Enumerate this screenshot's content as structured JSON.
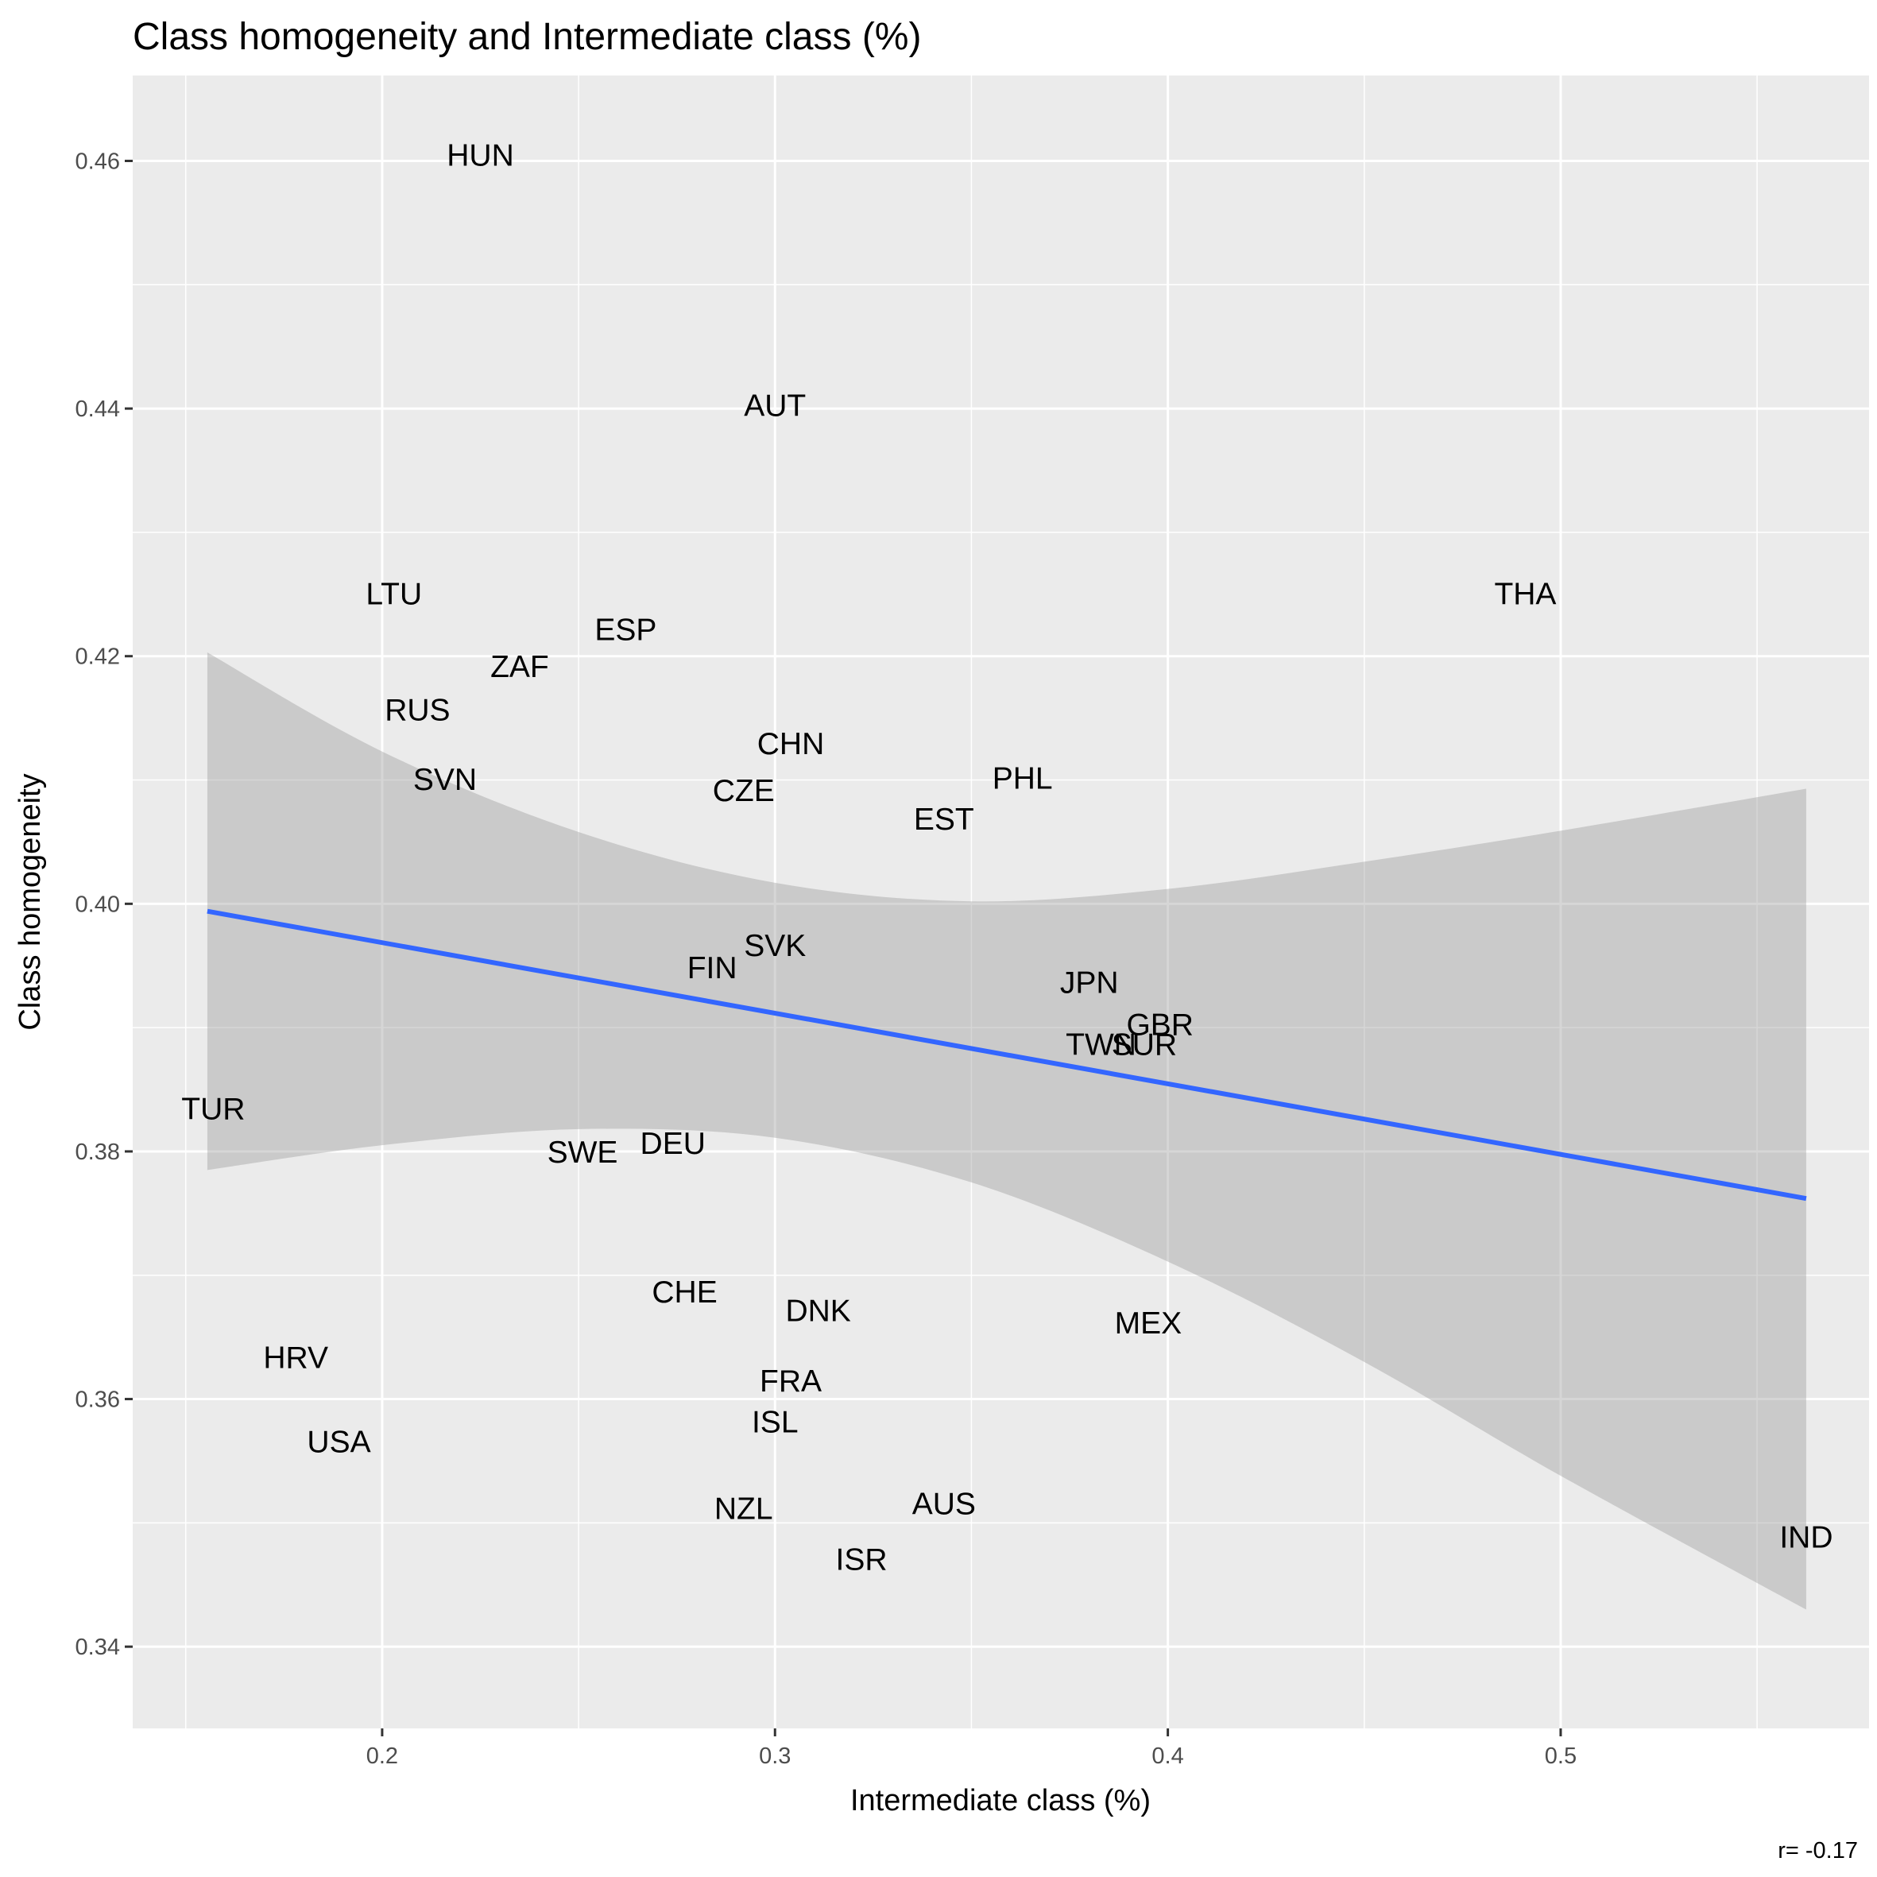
{
  "chart_data": {
    "type": "scatter",
    "title": "Class homogeneity and Intermediate class (%)",
    "xlabel": "Intermediate class (%)",
    "ylabel": "Class homogeneity",
    "xlim": [
      0.1365,
      0.5785
    ],
    "ylim": [
      0.3334,
      0.4669
    ],
    "x_ticks": [
      0.2,
      0.3,
      0.4,
      0.5
    ],
    "x_tick_labels": [
      "0.2",
      "0.3",
      "0.4",
      "0.5"
    ],
    "y_ticks": [
      0.34,
      0.36,
      0.38,
      0.4,
      0.42,
      0.44,
      0.46
    ],
    "y_tick_labels": [
      "0.34",
      "0.36",
      "0.38",
      "0.40",
      "0.42",
      "0.44",
      "0.46"
    ],
    "grid": true,
    "points": [
      {
        "label": "HUN",
        "x": 0.225,
        "y": 0.4605
      },
      {
        "label": "AUT",
        "x": 0.3,
        "y": 0.4403
      },
      {
        "label": "LTU",
        "x": 0.203,
        "y": 0.4251
      },
      {
        "label": "THA",
        "x": 0.491,
        "y": 0.4251
      },
      {
        "label": "ESP",
        "x": 0.262,
        "y": 0.4222
      },
      {
        "label": "ZAF",
        "x": 0.235,
        "y": 0.4192
      },
      {
        "label": "RUS",
        "x": 0.209,
        "y": 0.4157
      },
      {
        "label": "CHN",
        "x": 0.304,
        "y": 0.413
      },
      {
        "label": "PHL",
        "x": 0.363,
        "y": 0.4102
      },
      {
        "label": "SVN",
        "x": 0.216,
        "y": 0.4101
      },
      {
        "label": "CZE",
        "x": 0.292,
        "y": 0.4092
      },
      {
        "label": "EST",
        "x": 0.343,
        "y": 0.4069
      },
      {
        "label": "SVK",
        "x": 0.3,
        "y": 0.3967
      },
      {
        "label": "FIN",
        "x": 0.284,
        "y": 0.3949
      },
      {
        "label": "JPN",
        "x": 0.38,
        "y": 0.3937
      },
      {
        "label": "GBR",
        "x": 0.398,
        "y": 0.3903
      },
      {
        "label": "SUR",
        "x": 0.394,
        "y": 0.3887
      },
      {
        "label": "TWN",
        "x": 0.383,
        "y": 0.3887
      },
      {
        "label": "TUR",
        "x": 0.157,
        "y": 0.3835
      },
      {
        "label": "DEU",
        "x": 0.274,
        "y": 0.3807
      },
      {
        "label": "SWE",
        "x": 0.251,
        "y": 0.38
      },
      {
        "label": "CHE",
        "x": 0.277,
        "y": 0.3687
      },
      {
        "label": "DNK",
        "x": 0.311,
        "y": 0.3672
      },
      {
        "label": "MEX",
        "x": 0.395,
        "y": 0.3662
      },
      {
        "label": "HRV",
        "x": 0.178,
        "y": 0.3634
      },
      {
        "label": "FRA",
        "x": 0.304,
        "y": 0.3615
      },
      {
        "label": "ISL",
        "x": 0.3,
        "y": 0.3582
      },
      {
        "label": "USA",
        "x": 0.189,
        "y": 0.3566
      },
      {
        "label": "AUS",
        "x": 0.343,
        "y": 0.3516
      },
      {
        "label": "NZL",
        "x": 0.292,
        "y": 0.3512
      },
      {
        "label": "ISR",
        "x": 0.322,
        "y": 0.3471
      },
      {
        "label": "IND",
        "x": 0.5625,
        "y": 0.3489
      }
    ],
    "fit_line": {
      "x": [
        0.1555,
        0.5625
      ],
      "y": [
        0.3994,
        0.3762
      ],
      "color": "#3366FF"
    },
    "confidence_band": {
      "x": [
        0.1555,
        0.2,
        0.25,
        0.3,
        0.35,
        0.4,
        0.45,
        0.5,
        0.5625
      ],
      "upper": [
        0.4203,
        0.4123,
        0.4058,
        0.4017,
        0.4002,
        0.4012,
        0.4034,
        0.4059,
        0.4093
      ],
      "lower": [
        0.3785,
        0.3805,
        0.3818,
        0.3811,
        0.3775,
        0.3711,
        0.363,
        0.3538,
        0.343
      ],
      "color": "#999999"
    },
    "annotation": "r= -0.17"
  },
  "colors": {
    "panel_background": "#EBEBEB",
    "grid": "#FFFFFF",
    "text": "#000000",
    "axis_text": "#4D4D4D"
  }
}
